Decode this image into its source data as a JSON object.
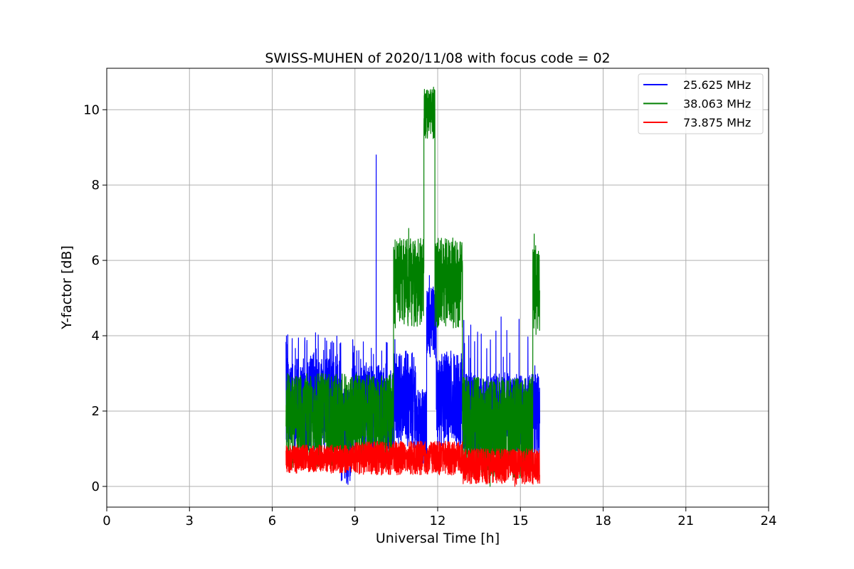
{
  "chart_data": {
    "type": "line",
    "title": "SWISS-MUHEN of 2020/11/08 with focus code = 02",
    "xlabel": "Universal Time [h]",
    "ylabel": "Y-factor [dB]",
    "xlim": [
      0,
      24
    ],
    "ylim": [
      -0.55,
      11.1
    ],
    "xticks": [
      0,
      3,
      6,
      9,
      12,
      15,
      18,
      21,
      24
    ],
    "xtick_labels": [
      "0",
      "3",
      "6",
      "9",
      "12",
      "15",
      "18",
      "21",
      "24"
    ],
    "yticks": [
      0,
      2,
      4,
      6,
      8,
      10
    ],
    "ytick_labels": [
      "0",
      "2",
      "4",
      "6",
      "8",
      "10"
    ],
    "grid": true,
    "legend_position": "top-right",
    "series": [
      {
        "name": "25.625 MHz",
        "color": "#0000ff",
        "segments": [
          {
            "t0": 6.5,
            "t1": 8.5,
            "min": 0.9,
            "max": 3.4,
            "upper_spike_prob": 0.06,
            "upper_spike_max": 4.2
          },
          {
            "t0": 8.5,
            "t1": 8.9,
            "min": 0.0,
            "max": 2.6
          },
          {
            "t0": 8.9,
            "t1": 10.4,
            "min": 0.8,
            "max": 3.2,
            "upper_spike_prob": 0.05,
            "upper_spike_max": 3.9
          },
          {
            "t0": 10.4,
            "t1": 11.2,
            "min": 1.0,
            "max": 3.6
          },
          {
            "t0": 11.2,
            "t1": 11.6,
            "min": 0.6,
            "max": 2.6
          },
          {
            "t0": 11.6,
            "t1": 11.95,
            "min": 3.4,
            "max": 5.3
          },
          {
            "t0": 11.95,
            "t1": 12.9,
            "min": 1.0,
            "max": 3.6
          },
          {
            "t0": 12.9,
            "t1": 15.7,
            "min": 0.8,
            "max": 3.0,
            "upper_spike_prob": 0.04,
            "upper_spike_max": 4.5
          }
        ],
        "peaks": [
          {
            "x": 9.77,
            "y": 8.8
          },
          {
            "x": 10.45,
            "y": 3.9
          },
          {
            "x": 11.7,
            "y": 5.6
          },
          {
            "x": 14.3,
            "y": 4.5
          },
          {
            "x": 15.65,
            "y": 2.7
          }
        ]
      },
      {
        "name": "38.063 MHz",
        "color": "#008000",
        "segments": [
          {
            "t0": 6.5,
            "t1": 10.4,
            "min": 0.5,
            "max": 3.0
          },
          {
            "t0": 10.4,
            "t1": 11.5,
            "min": 4.2,
            "max": 6.6
          },
          {
            "t0": 11.5,
            "t1": 11.9,
            "min": 9.2,
            "max": 10.55
          },
          {
            "t0": 11.9,
            "t1": 12.9,
            "min": 4.2,
            "max": 6.6
          },
          {
            "t0": 12.9,
            "t1": 15.45,
            "min": 0.2,
            "max": 2.9
          },
          {
            "t0": 15.45,
            "t1": 15.7,
            "min": 4.0,
            "max": 6.5
          }
        ],
        "peaks": [
          {
            "x": 11.85,
            "y": 10.6
          },
          {
            "x": 10.95,
            "y": 6.85
          },
          {
            "x": 15.5,
            "y": 6.7
          },
          {
            "x": 13.9,
            "y": 0.0
          }
        ]
      },
      {
        "name": "73.875 MHz",
        "color": "#ff0000",
        "segments": [
          {
            "t0": 6.5,
            "t1": 9.0,
            "min": 0.35,
            "max": 1.1
          },
          {
            "t0": 9.0,
            "t1": 12.9,
            "min": 0.3,
            "max": 1.2
          },
          {
            "t0": 12.9,
            "t1": 15.7,
            "min": 0.05,
            "max": 1.0
          }
        ],
        "peaks": [
          {
            "x": 14.8,
            "y": 0.0
          }
        ]
      }
    ]
  }
}
